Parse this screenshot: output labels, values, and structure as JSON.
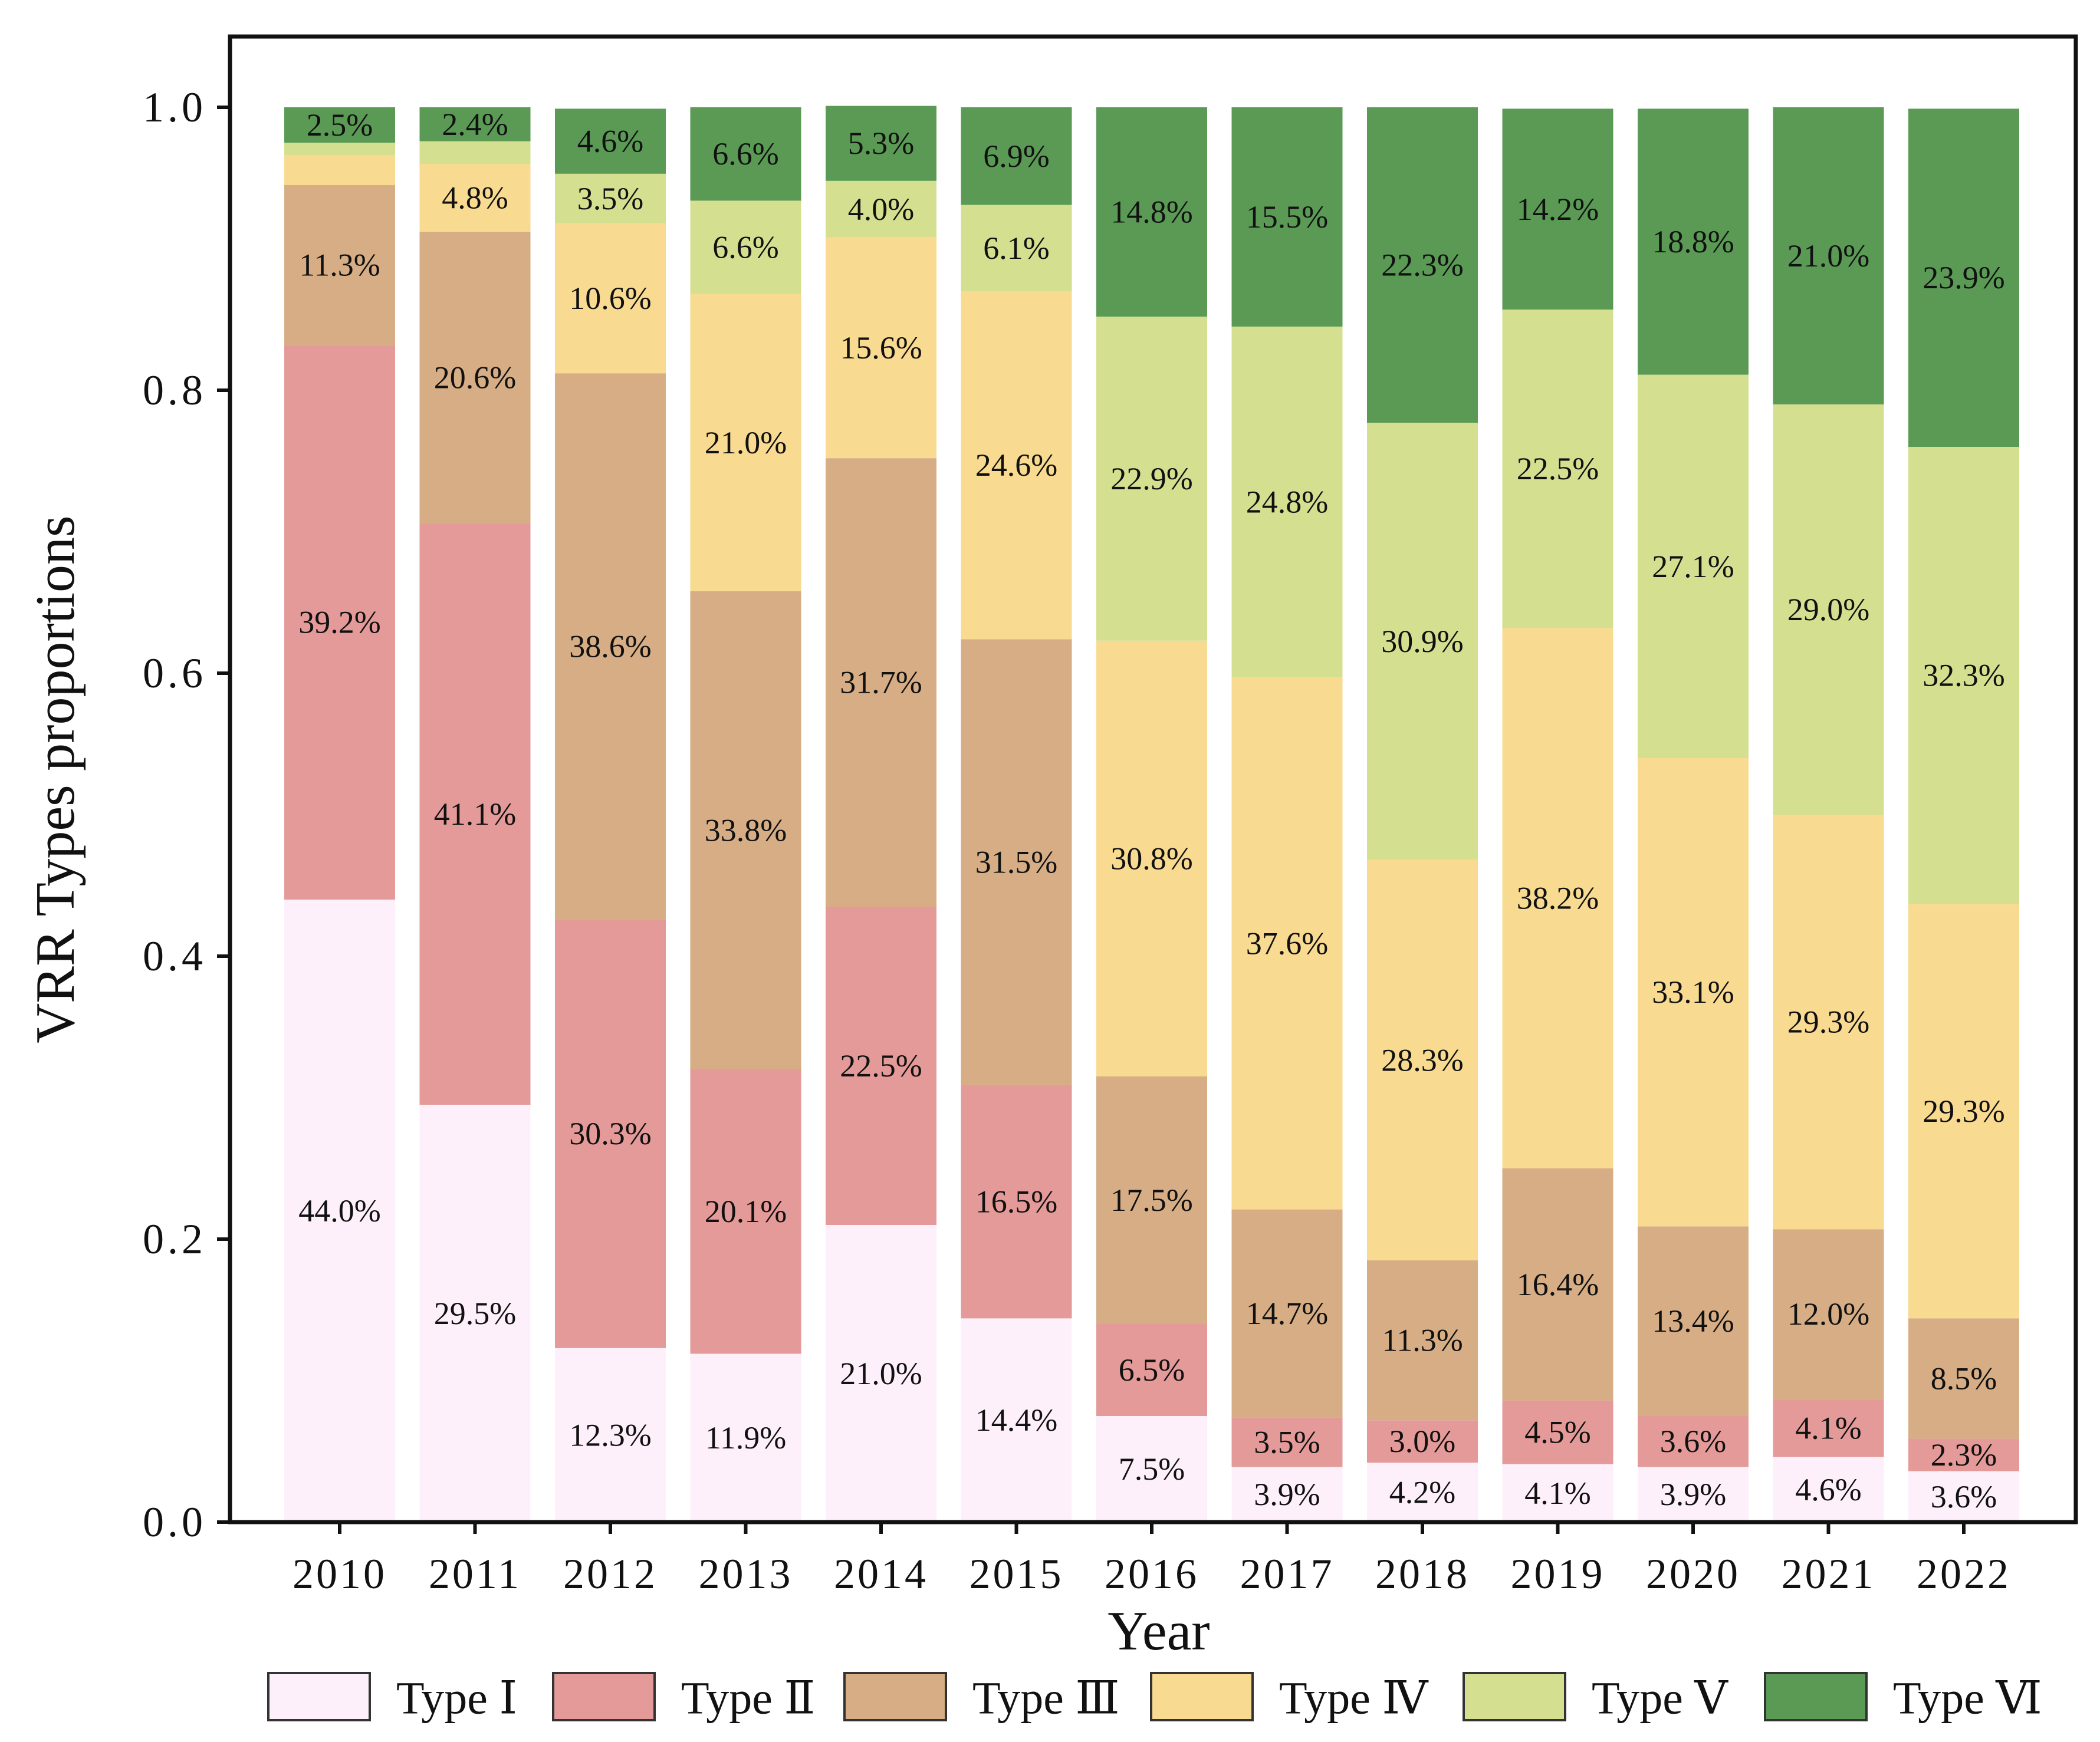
{
  "chart_data": {
    "type": "bar",
    "stacked": true,
    "xlabel": "Year",
    "ylabel": "VRR Types proportions",
    "ylim": [
      0,
      1.0
    ],
    "yticks": [
      "0.0",
      "0.2",
      "0.4",
      "0.6",
      "0.8",
      "1.0"
    ],
    "categories": [
      "2010",
      "2011",
      "2012",
      "2013",
      "2014",
      "2015",
      "2016",
      "2017",
      "2018",
      "2019",
      "2020",
      "2021",
      "2022"
    ],
    "series": [
      {
        "name": "Type I",
        "color": "#fdf0fb",
        "values": [
          0.44,
          0.295,
          0.123,
          0.119,
          0.21,
          0.144,
          0.075,
          0.039,
          0.042,
          0.041,
          0.039,
          0.046,
          0.036
        ],
        "labels": [
          "44.0%",
          "29.5%",
          "12.3%",
          "11.9%",
          "21.0%",
          "14.4%",
          "7.5%",
          "3.9%",
          "4.2%",
          "4.1%",
          "3.9%",
          "4.6%",
          "3.6%"
        ]
      },
      {
        "name": "Type II",
        "color": "#e39a98",
        "values": [
          0.392,
          0.411,
          0.303,
          0.201,
          0.225,
          0.165,
          0.065,
          0.035,
          0.03,
          0.045,
          0.036,
          0.041,
          0.023
        ],
        "labels": [
          "39.2%",
          "41.1%",
          "30.3%",
          "20.1%",
          "22.5%",
          "16.5%",
          "6.5%",
          "3.5%",
          "3.0%",
          "4.5%",
          "3.6%",
          "4.1%",
          "2.3%"
        ]
      },
      {
        "name": "Type III",
        "color": "#d6ad84",
        "values": [
          0.113,
          0.206,
          0.386,
          0.338,
          0.317,
          0.315,
          0.175,
          0.147,
          0.113,
          0.164,
          0.134,
          0.12,
          0.085
        ],
        "labels": [
          "11.3%",
          "20.6%",
          "38.6%",
          "33.8%",
          "31.7%",
          "31.5%",
          "17.5%",
          "14.7%",
          "11.3%",
          "16.4%",
          "13.4%",
          "12.0%",
          "8.5%"
        ]
      },
      {
        "name": "Type IV",
        "color": "#f8db90",
        "values": [
          0.021,
          0.048,
          0.106,
          0.21,
          0.156,
          0.246,
          0.308,
          0.376,
          0.283,
          0.382,
          0.331,
          0.293,
          0.293
        ],
        "labels": [
          "",
          "4.8%",
          "10.6%",
          "21.0%",
          "15.6%",
          "24.6%",
          "30.8%",
          "37.6%",
          "28.3%",
          "38.2%",
          "33.1%",
          "29.3%",
          "29.3%"
        ]
      },
      {
        "name": "Type V",
        "color": "#d5df90",
        "values": [
          0.009,
          0.016,
          0.035,
          0.066,
          0.04,
          0.061,
          0.229,
          0.248,
          0.309,
          0.225,
          0.271,
          0.29,
          0.323
        ],
        "labels": [
          "",
          "",
          "3.5%",
          "6.6%",
          "4.0%",
          "6.1%",
          "22.9%",
          "24.8%",
          "30.9%",
          "22.5%",
          "27.1%",
          "29.0%",
          "32.3%"
        ]
      },
      {
        "name": "Type VI",
        "color": "#5a9a55",
        "values": [
          0.025,
          0.024,
          0.046,
          0.066,
          0.053,
          0.069,
          0.148,
          0.155,
          0.223,
          0.142,
          0.188,
          0.21,
          0.239
        ],
        "labels": [
          "2.5%",
          "2.4%",
          "4.6%",
          "6.6%",
          "5.3%",
          "6.9%",
          "14.8%",
          "15.5%",
          "22.3%",
          "14.2%",
          "18.8%",
          "21.0%",
          "23.9%"
        ]
      }
    ],
    "legend": {
      "position": "bottom",
      "entries": [
        "Type Ⅰ",
        "Type Ⅱ",
        "Type Ⅲ",
        "Type  Ⅳ",
        "Type Ⅴ",
        "Type Ⅵ"
      ]
    },
    "grid": false
  }
}
